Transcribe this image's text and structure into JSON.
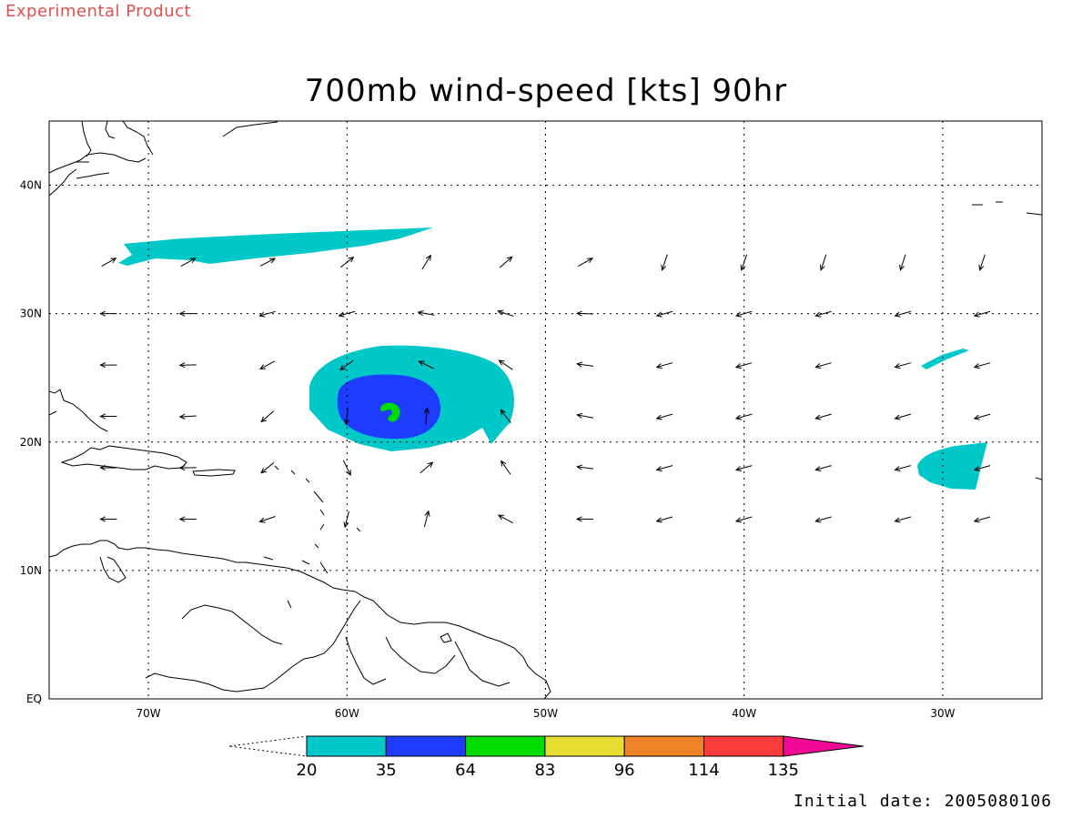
{
  "header": {
    "product_tag": "Experimental Product",
    "title": "700mb wind-speed [kts] 90hr"
  },
  "footer": {
    "initial_date": "Initial date: 2005080106"
  },
  "map": {
    "lon_range": [
      -75,
      -25
    ],
    "lat_range": [
      0,
      45
    ],
    "grid_lons": [
      -70,
      -60,
      -50,
      -40,
      -30
    ],
    "grid_lats": [
      10,
      20,
      30,
      40
    ],
    "lon_labels": [
      "70W",
      "60W",
      "50W",
      "40W",
      "30W"
    ],
    "lat_labels": [
      "EQ",
      "10N",
      "20N",
      "30N",
      "40N"
    ],
    "grid": "on",
    "storm_center": {
      "lon": -57.5,
      "lat": 22.5
    }
  },
  "colorbar": {
    "labels": [
      "20",
      "35",
      "64",
      "83",
      "96",
      "114",
      "135"
    ],
    "colors": [
      "#00c8c8",
      "#1e3cff",
      "#00dc00",
      "#e6dc32",
      "#f08228",
      "#fa3c3c",
      "#f00a96"
    ],
    "units": "kts"
  },
  "wind_field_colors": {
    "20-35": "#00c8c8",
    "35-64": "#1e3cff",
    "64-83": "#00dc00"
  }
}
